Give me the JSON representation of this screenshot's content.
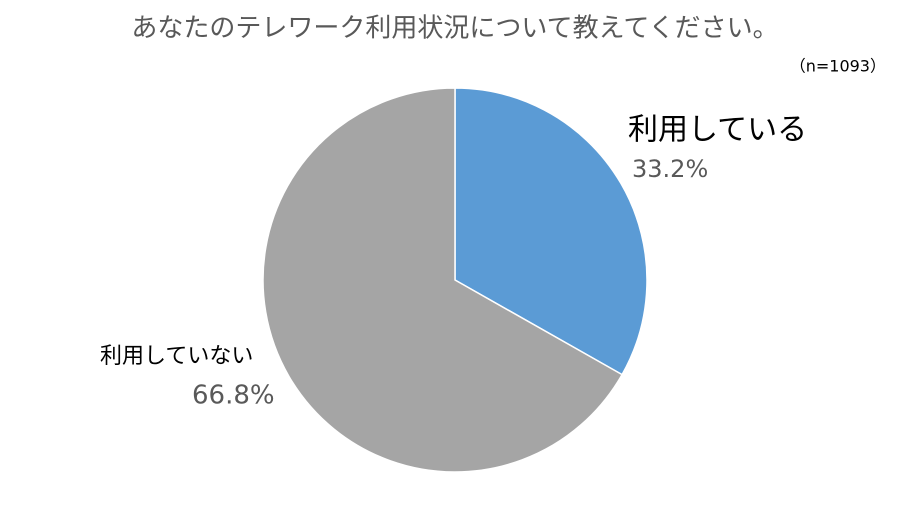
{
  "chart_data": {
    "type": "pie",
    "title": "あなたのテレワーク利用状況について教えてください。",
    "subtitle": "（n=1093）",
    "categories": [
      "利用している",
      "利用していない"
    ],
    "values": [
      33.2,
      66.8
    ],
    "value_labels": [
      "33.2%",
      "66.8%"
    ],
    "colors": [
      "#5b9bd5",
      "#a5a5a5"
    ]
  }
}
